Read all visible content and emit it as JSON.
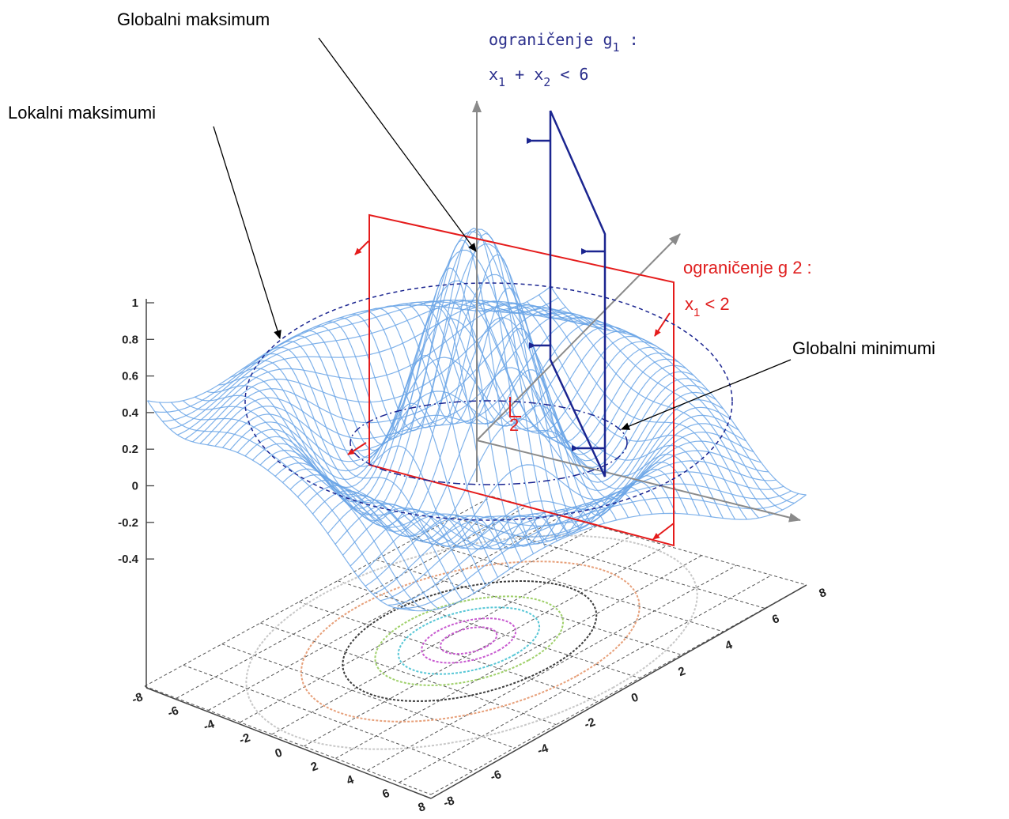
{
  "annotations": {
    "global_max": "Globalni maksimum",
    "local_max": "Lokalni maksimumi",
    "global_min": "Globalni  minimumi"
  },
  "constraint_g1": {
    "line1": {
      "base": "ograničenje g",
      "sub": "1",
      "tail": " :"
    },
    "line2": {
      "v1": "x",
      "s1": "1",
      "mid": " + x",
      "s2": "2",
      "tail": " < 6"
    }
  },
  "constraint_g2": {
    "line1": "ograničenje g 2 :",
    "line2": {
      "v": "x",
      "s": "1",
      "tail": " < 2"
    }
  },
  "x2_marker": "2",
  "z_ticks": [
    "1",
    "0.8",
    "0.6",
    "0.4",
    "0.2",
    "0",
    "-0.2",
    "-0.4"
  ],
  "x_ticks": [
    "-8",
    "-6",
    "-4",
    "-2",
    "0",
    "2",
    "4",
    "6",
    "8"
  ],
  "y_ticks": [
    "8",
    "6",
    "4",
    "2",
    "0",
    "-2",
    "-4",
    "-6",
    "-8"
  ],
  "colors": {
    "surface": "#6aa5e6",
    "constraint_g1": "#1b2590",
    "constraint_g2": "#e51b1b",
    "axes": "#888888",
    "contours": [
      "#c8c8c8",
      "#e7a07a",
      "#3c3c3c",
      "#9fd06a",
      "#58c7d6",
      "#c85ad0"
    ]
  }
}
